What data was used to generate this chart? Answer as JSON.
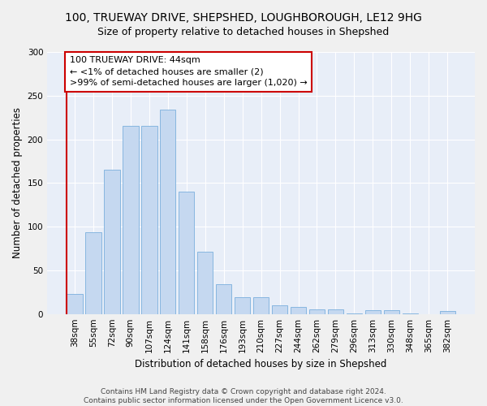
{
  "title": "100, TRUEWAY DRIVE, SHEPSHED, LOUGHBOROUGH, LE12 9HG",
  "subtitle": "Size of property relative to detached houses in Shepshed",
  "xlabel": "Distribution of detached houses by size in Shepshed",
  "ylabel": "Number of detached properties",
  "categories": [
    "38sqm",
    "55sqm",
    "72sqm",
    "90sqm",
    "107sqm",
    "124sqm",
    "141sqm",
    "158sqm",
    "176sqm",
    "193sqm",
    "210sqm",
    "227sqm",
    "244sqm",
    "262sqm",
    "279sqm",
    "296sqm",
    "313sqm",
    "330sqm",
    "348sqm",
    "365sqm",
    "382sqm"
  ],
  "values": [
    23,
    94,
    165,
    215,
    215,
    234,
    140,
    71,
    34,
    19,
    19,
    10,
    8,
    5,
    5,
    1,
    4,
    4,
    1,
    0,
    3
  ],
  "bar_color": "#c5d8f0",
  "bar_edge_color": "#7aafdd",
  "highlight_line_color": "#cc0000",
  "annotation_line1": "100 TRUEWAY DRIVE: 44sqm",
  "annotation_line2": "← <1% of detached houses are smaller (2)",
  "annotation_line3": ">99% of semi-detached houses are larger (1,020) →",
  "annotation_box_color": "#ffffff",
  "annotation_box_edge_color": "#cc0000",
  "ylim": [
    0,
    300
  ],
  "yticks": [
    0,
    50,
    100,
    150,
    200,
    250,
    300
  ],
  "footer_text": "Contains HM Land Registry data © Crown copyright and database right 2024.\nContains public sector information licensed under the Open Government Licence v3.0.",
  "bg_color": "#e8eef8",
  "fig_bg_color": "#f0f0f0",
  "grid_color": "#ffffff",
  "title_fontsize": 10,
  "subtitle_fontsize": 9,
  "axis_label_fontsize": 8.5,
  "tick_fontsize": 7.5,
  "annotation_fontsize": 8,
  "footer_fontsize": 6.5
}
